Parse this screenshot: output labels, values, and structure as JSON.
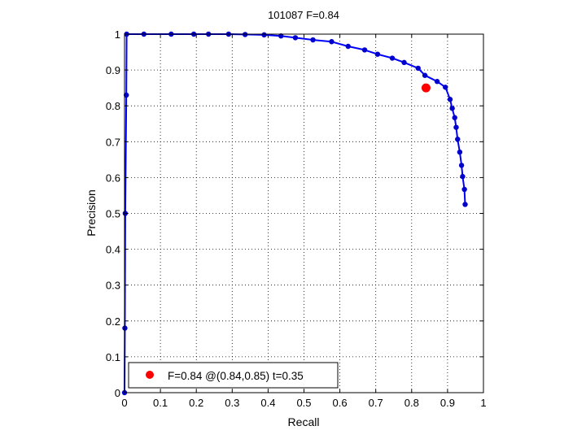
{
  "chart_data": {
    "type": "line",
    "title": "101087 F=0.84",
    "xlabel": "Recall",
    "ylabel": "Precision",
    "xlim": [
      0,
      1
    ],
    "ylim": [
      0,
      1
    ],
    "xticks": [
      "0",
      "0.1",
      "0.2",
      "0.3",
      "0.4",
      "0.5",
      "0.6",
      "0.7",
      "0.8",
      "0.9",
      "1"
    ],
    "yticks": [
      "0",
      "0.1",
      "0.2",
      "0.3",
      "0.4",
      "0.5",
      "0.6",
      "0.7",
      "0.8",
      "0.9",
      "1"
    ],
    "grid": true,
    "legend": {
      "placement": "bottom-left",
      "entries": [
        "F=0.84 @(0.84,0.85) t=0.35"
      ]
    },
    "colors": {
      "curve": "#0000ff",
      "curve_marker": "#0000cc",
      "highlight": "#ff0000"
    },
    "series": [
      {
        "x": [
          0.949,
          0.947,
          0.942,
          0.939,
          0.934,
          0.928,
          0.924,
          0.92,
          0.913,
          0.907,
          0.894,
          0.871,
          0.837,
          0.818,
          0.779,
          0.746,
          0.705,
          0.669,
          0.623,
          0.577,
          0.525,
          0.476,
          0.436,
          0.389,
          0.336,
          0.29,
          0.234,
          0.193,
          0.13,
          0.054,
          0.006,
          0.005,
          0.002,
          0.001,
          0.0
        ],
        "y": [
          0.525,
          0.567,
          0.603,
          0.634,
          0.671,
          0.707,
          0.74,
          0.767,
          0.793,
          0.818,
          0.852,
          0.868,
          0.885,
          0.905,
          0.921,
          0.933,
          0.944,
          0.956,
          0.966,
          0.979,
          0.984,
          0.99,
          0.995,
          0.998,
          0.999,
          1.0,
          1.0,
          1.0,
          1.0,
          1.0,
          1.0,
          0.83,
          0.5,
          0.18,
          0.0
        ]
      }
    ],
    "highlight_point": {
      "x": 0.84,
      "y": 0.85
    }
  }
}
